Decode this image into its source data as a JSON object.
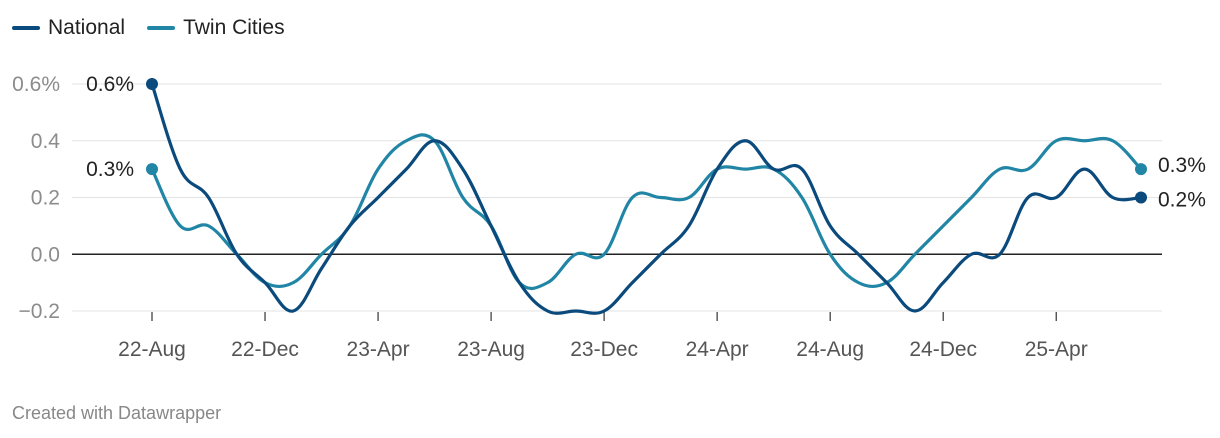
{
  "colors": {
    "national": "#0b4a7c",
    "twin_cities": "#2186a5",
    "grid": "#e3e3e3",
    "zero_line": "#222222",
    "tick_text": "#8c8c8c",
    "label_text": "#222222"
  },
  "footer": {
    "credit": "Created with Datawrapper"
  },
  "chart_data": {
    "type": "line",
    "title": "",
    "xlabel": "",
    "ylabel": "",
    "ylim": [
      -0.2,
      0.6
    ],
    "grid": true,
    "legend_position": "top-left",
    "y_ticks": [
      {
        "value": 0.6,
        "label": "0.6%"
      },
      {
        "value": 0.4,
        "label": "0.4"
      },
      {
        "value": 0.2,
        "label": "0.2"
      },
      {
        "value": 0.0,
        "label": "0.0"
      },
      {
        "value": -0.2,
        "label": "−0.2"
      }
    ],
    "x_ticks": [
      "22-Aug",
      "22-Dec",
      "23-Apr",
      "23-Aug",
      "23-Dec",
      "24-Apr",
      "24-Aug",
      "24-Dec",
      "25-Apr"
    ],
    "x": [
      "2022-08",
      "2022-09",
      "2022-10",
      "2022-11",
      "2022-12",
      "2023-01",
      "2023-02",
      "2023-03",
      "2023-04",
      "2023-05",
      "2023-06",
      "2023-07",
      "2023-08",
      "2023-09",
      "2023-10",
      "2023-11",
      "2023-12",
      "2024-01",
      "2024-02",
      "2024-03",
      "2024-04",
      "2024-05",
      "2024-06",
      "2024-07",
      "2024-08",
      "2024-09",
      "2024-10",
      "2024-11",
      "2024-12",
      "2025-01",
      "2025-02",
      "2025-03",
      "2025-04",
      "2025-05",
      "2025-06",
      "2025-07"
    ],
    "series": [
      {
        "key": "national",
        "name": "National",
        "values": [
          0.6,
          0.3,
          0.2,
          0.0,
          -0.1,
          -0.2,
          -0.05,
          0.1,
          0.2,
          0.3,
          0.4,
          0.3,
          0.1,
          -0.1,
          -0.2,
          -0.2,
          -0.2,
          -0.1,
          0.0,
          0.1,
          0.3,
          0.4,
          0.3,
          0.3,
          0.1,
          0.0,
          -0.1,
          -0.2,
          -0.1,
          0.0,
          0.0,
          0.2,
          0.2,
          0.3,
          0.2,
          0.2
        ],
        "end_label": "0.2%"
      },
      {
        "key": "twin_cities",
        "name": "Twin Cities",
        "values": [
          0.3,
          0.1,
          0.1,
          0.0,
          -0.1,
          -0.1,
          0.0,
          0.1,
          0.3,
          0.4,
          0.4,
          0.2,
          0.1,
          -0.1,
          -0.1,
          0.0,
          0.0,
          0.2,
          0.2,
          0.2,
          0.3,
          0.3,
          0.3,
          0.2,
          0.0,
          -0.1,
          -0.1,
          0.0,
          0.1,
          0.2,
          0.3,
          0.3,
          0.4,
          0.4,
          0.4,
          0.3
        ],
        "start_label": "0.3%",
        "end_label": "0.3%"
      }
    ],
    "national_start_label": "0.6%"
  }
}
